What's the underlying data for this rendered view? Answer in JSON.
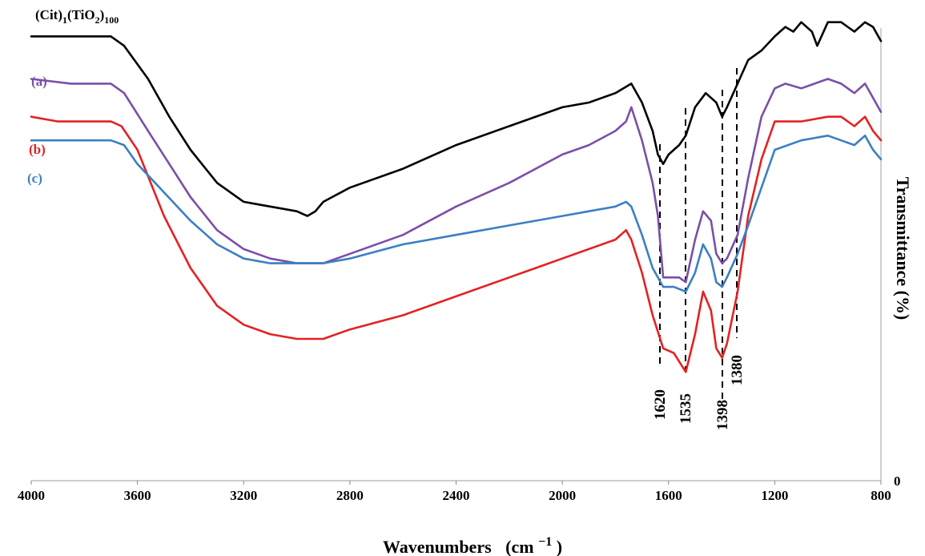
{
  "chart_data": {
    "type": "line",
    "title": "",
    "xlabel": "Wavenumbers (cm⁻¹)",
    "xlabel_main": "Wavenumbers",
    "xlabel_unit": "(cm",
    "xlabel_sup": "−1",
    "xlabel_close": ")",
    "ylabel": "Transmittance (%)",
    "y_zero_label": "0",
    "xlim": [
      4000,
      800
    ],
    "x_reversed": true,
    "ylim": [
      0,
      100
    ],
    "xticks": [
      4000,
      3600,
      3200,
      2800,
      2400,
      2000,
      1600,
      1200,
      800
    ],
    "series": [
      {
        "name": "(Cit)1(TiO2)100",
        "label": "(Cit)",
        "label_sub1": "1",
        "label_mid": "(TiO",
        "label_sub2": "2",
        "label_mid2": ")",
        "label_sub3": "100",
        "color": "#000000",
        "x": [
          4000,
          3850,
          3700,
          3650,
          3560,
          3480,
          3400,
          3300,
          3200,
          3100,
          3000,
          2960,
          2930,
          2900,
          2800,
          2600,
          2400,
          2200,
          2000,
          1900,
          1800,
          1740,
          1700,
          1660,
          1640,
          1620,
          1600,
          1560,
          1535,
          1500,
          1460,
          1420,
          1398,
          1380,
          1340,
          1300,
          1250,
          1200,
          1160,
          1130,
          1100,
          1060,
          1040,
          1000,
          950,
          900,
          860,
          830,
          800
        ],
        "y": [
          94,
          94,
          94,
          92,
          85,
          77,
          70,
          63,
          59,
          58,
          57,
          56,
          57,
          59,
          62,
          66,
          71,
          75,
          79,
          80,
          82,
          84,
          80,
          74,
          69,
          67,
          69,
          71,
          73,
          79,
          82,
          80,
          77,
          79,
          84,
          89,
          91,
          94,
          96,
          95,
          97,
          95,
          92,
          97,
          97,
          95,
          97,
          96,
          93
        ]
      },
      {
        "name": "(a)",
        "label": "(a)",
        "color": "#7a4fa8",
        "x": [
          4000,
          3850,
          3700,
          3650,
          3560,
          3480,
          3400,
          3300,
          3200,
          3100,
          3000,
          2900,
          2800,
          2600,
          2400,
          2200,
          2000,
          1900,
          1800,
          1760,
          1740,
          1700,
          1660,
          1640,
          1620,
          1560,
          1535,
          1500,
          1470,
          1440,
          1420,
          1398,
          1380,
          1340,
          1300,
          1250,
          1200,
          1160,
          1100,
          1000,
          950,
          900,
          860,
          830,
          800
        ],
        "y": [
          85,
          84,
          84,
          82,
          74,
          67,
          60,
          53,
          49,
          47,
          46,
          46,
          48,
          52,
          58,
          63,
          69,
          71,
          74,
          76,
          79,
          72,
          63,
          56,
          43,
          43,
          42,
          51,
          57,
          55,
          48,
          46,
          47,
          52,
          64,
          77,
          83,
          84,
          83,
          85,
          84,
          82,
          84,
          81,
          78
        ]
      },
      {
        "name": "(b)",
        "label": "(b)",
        "color": "#e32222",
        "x": [
          4000,
          3900,
          3800,
          3700,
          3660,
          3600,
          3500,
          3400,
          3300,
          3200,
          3100,
          3000,
          2900,
          2800,
          2600,
          2400,
          2200,
          2100,
          2000,
          1900,
          1800,
          1760,
          1740,
          1700,
          1660,
          1620,
          1580,
          1535,
          1500,
          1470,
          1440,
          1420,
          1398,
          1380,
          1340,
          1300,
          1250,
          1200,
          1100,
          1000,
          950,
          900,
          860,
          830,
          800
        ],
        "y": [
          77,
          76,
          76,
          76,
          75,
          70,
          56,
          45,
          37,
          33,
          31,
          30,
          30,
          32,
          35,
          39,
          43,
          45,
          47,
          49,
          51,
          53,
          51,
          44,
          35,
          28,
          27,
          23,
          31,
          40,
          36,
          28,
          26,
          29,
          40,
          56,
          68,
          76,
          76,
          77,
          77,
          75,
          77,
          74,
          72
        ]
      },
      {
        "name": "(c)",
        "label": "(c)",
        "color": "#3b7fc4",
        "x": [
          4000,
          3850,
          3700,
          3650,
          3600,
          3500,
          3400,
          3300,
          3200,
          3100,
          3000,
          2900,
          2800,
          2600,
          2400,
          2200,
          2000,
          1900,
          1800,
          1760,
          1740,
          1700,
          1660,
          1620,
          1580,
          1535,
          1500,
          1470,
          1440,
          1420,
          1398,
          1380,
          1340,
          1300,
          1250,
          1200,
          1100,
          1000,
          950,
          900,
          860,
          830,
          800
        ],
        "y": [
          72,
          72,
          72,
          71,
          67,
          61,
          55,
          50,
          47,
          46,
          46,
          46,
          47,
          50,
          52,
          54,
          56,
          57,
          58,
          59,
          58,
          52,
          45,
          41,
          41,
          40,
          44,
          50,
          47,
          42,
          41,
          43,
          48,
          54,
          62,
          70,
          72,
          73,
          72,
          71,
          73,
          70,
          68
        ]
      }
    ],
    "annotations": [
      {
        "label": "1620",
        "x": 1620
      },
      {
        "label": "1535",
        "x": 1535
      },
      {
        "label": "1398",
        "x": 1398
      },
      {
        "label": "1380",
        "x": 1380
      }
    ]
  }
}
